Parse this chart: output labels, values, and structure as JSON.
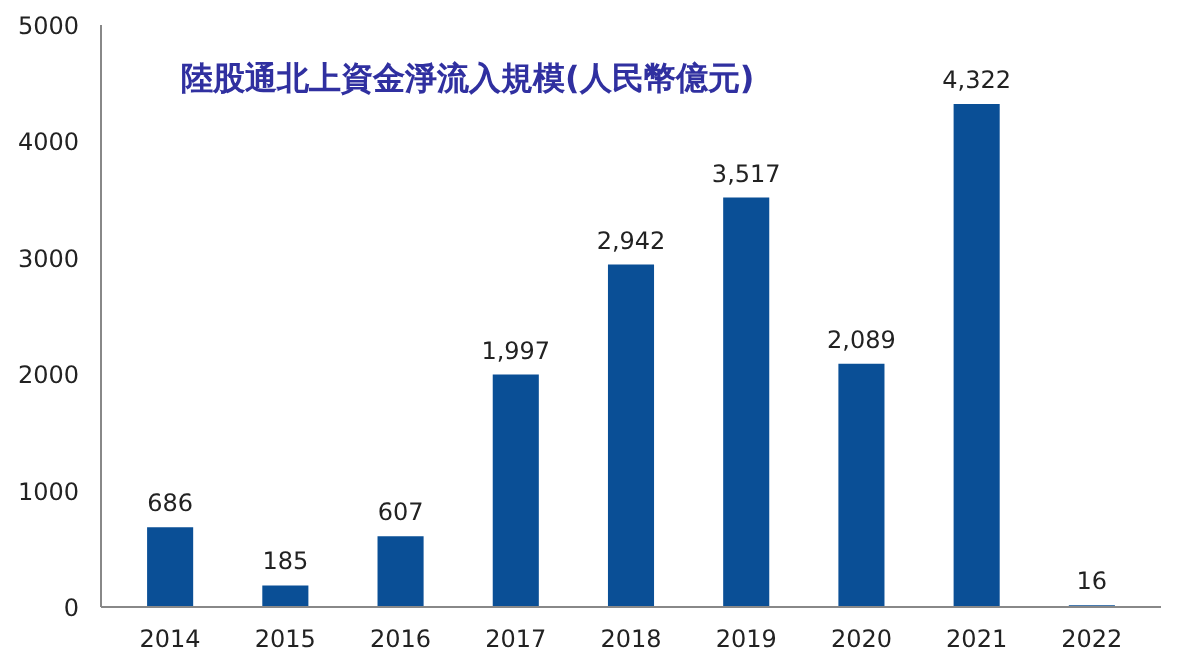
{
  "chart_data": {
    "type": "bar",
    "title": "陸股通北上資金淨流入規模(人民幣億元)",
    "categories": [
      "2014",
      "2015",
      "2016",
      "2017",
      "2018",
      "2019",
      "2020",
      "2021",
      "2022"
    ],
    "values": [
      686,
      185,
      607,
      1997,
      2942,
      3517,
      2089,
      4322,
      16
    ],
    "value_labels": [
      "686",
      "185",
      "607",
      "1,997",
      "2,942",
      "3,517",
      "2,089",
      "4,322",
      "16"
    ],
    "color": "#0a4f96",
    "ylim": [
      0,
      5000
    ],
    "yticks": [
      0,
      1000,
      2000,
      3000,
      4000,
      5000
    ],
    "grid": false
  }
}
